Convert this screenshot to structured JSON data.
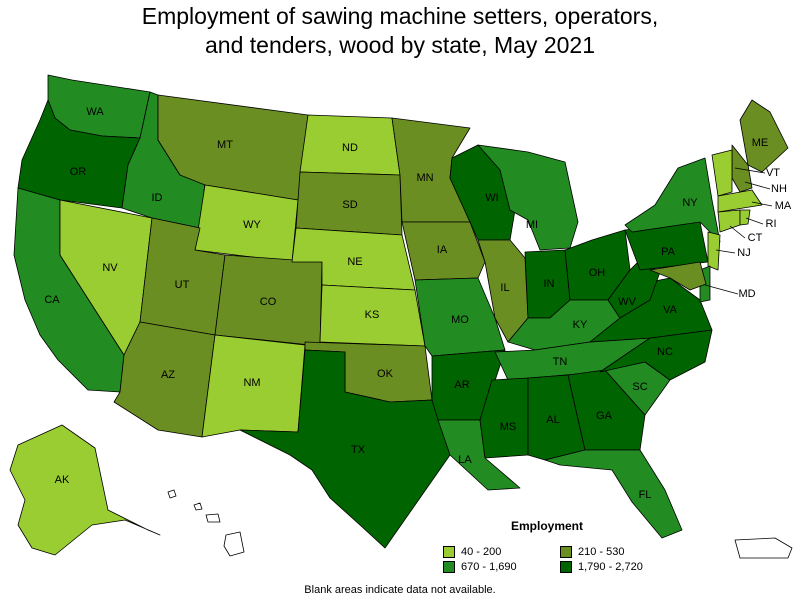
{
  "title_line1": "Employment of sawing machine setters, operators,",
  "title_line2": "and tenders, wood by state, May 2021",
  "legend": {
    "title": "Employment",
    "bins": [
      {
        "label": "40 - 200",
        "color": "#9acd32"
      },
      {
        "label": "210 - 530",
        "color": "#6b8e23"
      },
      {
        "label": "670 - 1,690",
        "color": "#228b22"
      },
      {
        "label": "1,790 - 2,720",
        "color": "#006400"
      }
    ]
  },
  "footnote": "Blank areas indicate data not available.",
  "states": {
    "WA": 2,
    "OR": 3,
    "CA": 2,
    "NV": 0,
    "ID": 2,
    "MT": 1,
    "WY": 0,
    "UT": 1,
    "AZ": 1,
    "CO": 1,
    "NM": 0,
    "ND": 0,
    "SD": 1,
    "NE": 0,
    "KS": 0,
    "OK": 1,
    "TX": 3,
    "MN": 1,
    "IA": 1,
    "MO": 2,
    "AR": 3,
    "LA": 2,
    "WI": 3,
    "IL": 1,
    "MI": 2,
    "IN": 3,
    "OH": 3,
    "KY": 2,
    "TN": 2,
    "MS": 3,
    "AL": 3,
    "GA": 3,
    "FL": 2,
    "SC": 2,
    "NC": 3,
    "VA": 3,
    "WV": 3,
    "PA": 3,
    "NY": 2,
    "ME": 1,
    "NH": 1,
    "VT": 0,
    "MA": 0,
    "CT": 0,
    "RI": 0,
    "NJ": 0,
    "DE": 2,
    "MD": 1,
    "AK": 0
  },
  "labels": {
    "WA": "WA",
    "OR": "OR",
    "CA": "CA",
    "NV": "NV",
    "ID": "ID",
    "MT": "MT",
    "WY": "WY",
    "UT": "UT",
    "AZ": "AZ",
    "CO": "CO",
    "NM": "NM",
    "ND": "ND",
    "SD": "SD",
    "NE": "NE",
    "KS": "KS",
    "OK": "OK",
    "TX": "TX",
    "MN": "MN",
    "IA": "IA",
    "MO": "MO",
    "AR": "AR",
    "LA": "LA",
    "WI": "WI",
    "IL": "IL",
    "MI": "MI",
    "IN": "IN",
    "OH": "OH",
    "KY": "KY",
    "TN": "TN",
    "MS": "MS",
    "AL": "AL",
    "GA": "GA",
    "FL": "FL",
    "SC": "SC",
    "NC": "NC",
    "VA": "VA",
    "WV": "WV",
    "PA": "PA",
    "NY": "NY",
    "ME": "ME",
    "VT": "VT",
    "NH": "NH",
    "MA": "MA",
    "RI": "RI",
    "CT": "CT",
    "NJ": "NJ",
    "MD": "MD",
    "AK": "AK"
  }
}
